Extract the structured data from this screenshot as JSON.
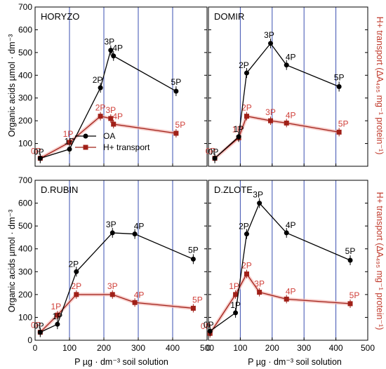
{
  "y_axis_label": "Organic acids µmol · dm⁻³",
  "y2_axis_label": "H+ transport (ΔA₄₉₅ mg⁻¹ protein⁻¹)",
  "x_axis_label": "P µg · dm⁻³ soil solution",
  "legend": [
    {
      "name": "OA",
      "color": "#000000",
      "marker": "circle"
    },
    {
      "name": "H+ transport",
      "color": "#a02018",
      "marker": "square"
    }
  ],
  "colors": {
    "oa": "#000000",
    "h": "#a02018",
    "h_label": "#d0403a",
    "vline": "#3a4fb0"
  },
  "chart_data": [
    {
      "type": "line",
      "title": "HORYZO",
      "xlim": [
        0,
        500
      ],
      "ylim": [
        0,
        700
      ],
      "x_ticks": [
        0,
        100,
        200,
        300,
        400,
        500
      ],
      "y_ticks": [
        0,
        100,
        200,
        300,
        400,
        500,
        600,
        700
      ],
      "vlines": [
        100,
        200,
        300,
        400
      ],
      "series": [
        {
          "name": "OA",
          "x": [
            15,
            100,
            190,
            220,
            228,
            410
          ],
          "y": [
            35,
            75,
            345,
            510,
            485,
            330
          ],
          "labels": [
            "0P",
            "1P",
            "2P",
            "3P",
            "4P",
            "5P"
          ]
        },
        {
          "name": "H+ transport",
          "x": [
            15,
            100,
            190,
            220,
            228,
            410
          ],
          "y": [
            35,
            105,
            220,
            210,
            185,
            145
          ],
          "labels": [
            "0P",
            "1P",
            "2P",
            "3P",
            "4P",
            "5P"
          ]
        }
      ]
    },
    {
      "type": "line",
      "title": "DOMIR",
      "xlim": [
        0,
        500
      ],
      "ylim": [
        0,
        700
      ],
      "x_ticks": [
        0,
        100,
        200,
        300,
        400,
        500
      ],
      "y_ticks": [
        0,
        100,
        200,
        300,
        400,
        500,
        600,
        700
      ],
      "vlines": [
        100,
        200,
        300,
        400
      ],
      "series": [
        {
          "name": "OA",
          "x": [
            20,
            95,
            120,
            195,
            245,
            410
          ],
          "y": [
            35,
            130,
            410,
            540,
            445,
            350
          ],
          "labels": [
            "0P",
            "1P",
            "2P",
            "3P",
            "4P",
            "5P"
          ]
        },
        {
          "name": "H+ transport",
          "x": [
            20,
            95,
            120,
            195,
            245,
            410
          ],
          "y": [
            35,
            125,
            220,
            200,
            190,
            150
          ],
          "labels": [
            "0P",
            "1P",
            "2P",
            "3P",
            "4P",
            "5P"
          ]
        }
      ]
    },
    {
      "type": "line",
      "title": "D.RUBIN",
      "xlim": [
        0,
        500
      ],
      "ylim": [
        0,
        700
      ],
      "x_ticks": [
        0,
        100,
        200,
        300,
        400,
        500
      ],
      "y_ticks": [
        0,
        100,
        200,
        300,
        400,
        500,
        600,
        700
      ],
      "vlines": [
        100,
        200,
        300,
        400
      ],
      "series": [
        {
          "name": "OA",
          "x": [
            15,
            65,
            120,
            225,
            290,
            460
          ],
          "y": [
            35,
            70,
            300,
            470,
            465,
            355
          ],
          "labels": [
            "0P",
            "1P",
            "2P",
            "3P",
            "4P",
            "5P"
          ]
        },
        {
          "name": "H+ transport",
          "x": [
            15,
            65,
            120,
            225,
            290,
            460
          ],
          "y": [
            35,
            110,
            200,
            200,
            165,
            140
          ],
          "labels": [
            "0P",
            "1P",
            "2P",
            "3P",
            "4P",
            "5P"
          ]
        }
      ]
    },
    {
      "type": "line",
      "title": "D.ZLOTE",
      "xlim": [
        0,
        500
      ],
      "ylim": [
        0,
        700
      ],
      "x_ticks": [
        0,
        100,
        200,
        300,
        400,
        500
      ],
      "y_ticks": [
        0,
        100,
        200,
        300,
        400,
        500,
        600,
        700
      ],
      "vlines": [
        100,
        200,
        300,
        400
      ],
      "series": [
        {
          "name": "OA",
          "x": [
            5,
            85,
            120,
            160,
            245,
            445
          ],
          "y": [
            40,
            120,
            465,
            600,
            470,
            350
          ],
          "labels": [
            "0P",
            "1P",
            "2P",
            "3P",
            "4P",
            "5P"
          ]
        },
        {
          "name": "H+ transport",
          "x": [
            5,
            85,
            120,
            160,
            245,
            445
          ],
          "y": [
            30,
            200,
            290,
            210,
            180,
            160
          ],
          "labels": [
            "0P",
            "1P",
            "2P",
            "3P",
            "4P",
            "5P"
          ]
        }
      ]
    }
  ]
}
